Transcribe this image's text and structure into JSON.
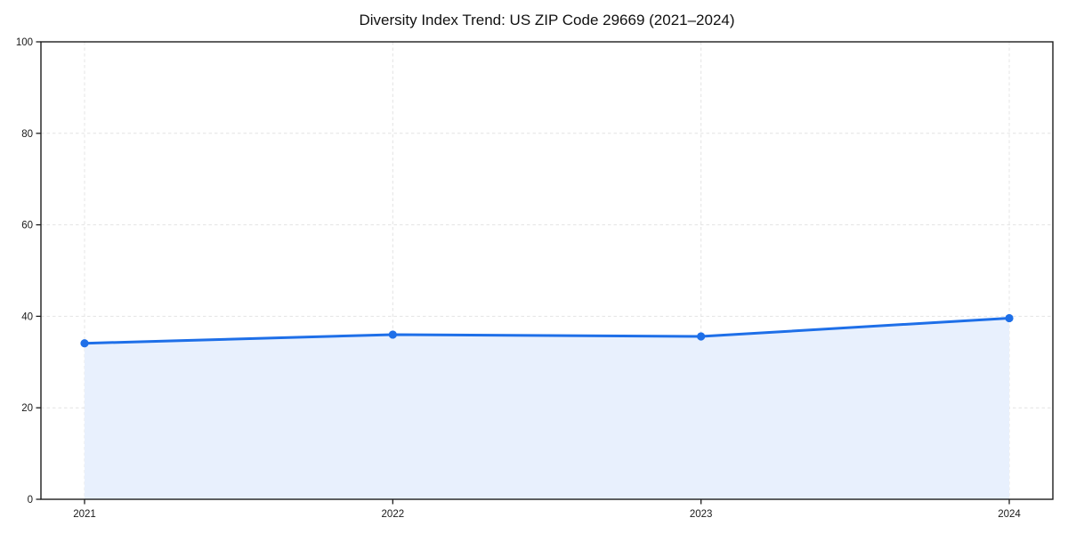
{
  "chart_data": {
    "type": "area",
    "title": "Diversity Index Trend: US ZIP Code 29669 (2021–2024)",
    "categories": [
      "2021",
      "2022",
      "2023",
      "2024"
    ],
    "x": [
      2021,
      2022,
      2023,
      2024
    ],
    "series": [
      {
        "name": "Diversity Index",
        "values": [
          34.1,
          36.0,
          35.6,
          39.6
        ]
      }
    ],
    "xlabel": "",
    "ylabel": "",
    "ylim": [
      0,
      100
    ],
    "yticks": [
      0,
      20,
      40,
      60,
      80,
      100
    ],
    "grid": true,
    "grid_style": "dashed",
    "legend": false,
    "colors": {
      "line": "#1e6fe8",
      "marker": "#1e6fe8",
      "fill": "#e8f0fd",
      "grid": "#e4e4e4",
      "spine": "#1c1c1c",
      "tick_label": "#1a1a1a",
      "background": "#ffffff"
    }
  }
}
